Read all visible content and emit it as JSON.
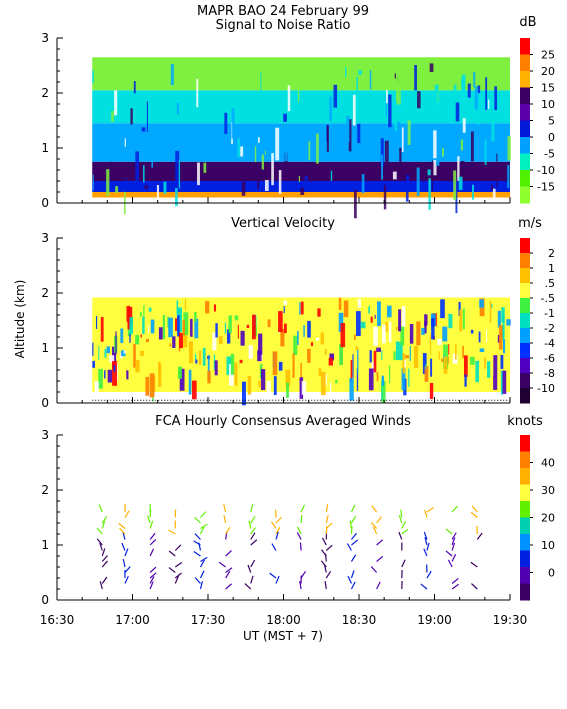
{
  "figure_title": "MAPR BAO 24 February 99",
  "x_axis_label": "UT  (MST + 7)",
  "x_tick_labels": [
    "16:30",
    "17:00",
    "17:30",
    "18:00",
    "18:30",
    "19:00",
    "19:30"
  ],
  "y_axis_label": "Altitude (km)",
  "chart_data": [
    {
      "type": "heatmap",
      "title": "Signal to Noise Ratio",
      "colorbar_unit": "dB",
      "ylim": [
        0,
        3
      ],
      "y_ticks": [
        "0",
        "1",
        "2",
        "3"
      ],
      "data_extent_x": [
        "16:44",
        "19:30"
      ],
      "data_extent_y": [
        0.1,
        2.65
      ],
      "colorbar": {
        "labels": [
          "25",
          "20",
          "15",
          "10",
          "5",
          "0",
          "-5",
          "-10",
          "-15"
        ],
        "colors": [
          "#ff0000",
          "#ff7f00",
          "#ffb000",
          "#3a0063",
          "#5a00a8",
          "#0018d8",
          "#00a0ff",
          "#00f0c0",
          "#50f000",
          "#90ff30"
        ]
      },
      "layers": [
        {
          "from_km": 0.1,
          "to_km": 0.2,
          "color": "#ffa000"
        },
        {
          "from_km": 0.2,
          "to_km": 0.4,
          "color": "#0020e0"
        },
        {
          "from_km": 0.4,
          "to_km": 0.75,
          "color": "#3a0063"
        },
        {
          "from_km": 0.75,
          "to_km": 1.45,
          "color": "#00a8ff"
        },
        {
          "from_km": 1.45,
          "to_km": 2.05,
          "color": "#00e0e0"
        },
        {
          "from_km": 2.05,
          "to_km": 2.65,
          "color": "#80f040"
        }
      ]
    },
    {
      "type": "heatmap",
      "title": "Vertical Velocity",
      "colorbar_unit": "m/s",
      "ylim": [
        0,
        3
      ],
      "y_ticks": [
        "0",
        "1",
        "2",
        "3"
      ],
      "data_extent_x": [
        "16:44",
        "19:30"
      ],
      "data_extent_y": [
        0.2,
        2.1
      ],
      "colorbar": {
        "labels": [
          "2",
          "1",
          ".5",
          "-.5",
          "-1",
          "-2",
          "-4",
          "-6",
          "-8",
          "-10"
        ],
        "colors": [
          "#ff0000",
          "#ff7f00",
          "#ffc000",
          "#ffff40",
          "#40f040",
          "#00e0c0",
          "#00a0ff",
          "#0030ff",
          "#5000c0",
          "#3a0063",
          "#200030"
        ]
      },
      "dominant_color": "#ffff40"
    },
    {
      "type": "barbs",
      "title": "FCA Hourly Consensus Averaged Winds",
      "colorbar_unit": "knots",
      "ylim": [
        0,
        3
      ],
      "y_ticks": [
        "0",
        "1",
        "2",
        "3"
      ],
      "colorbar": {
        "labels": [
          "40",
          "30",
          "20",
          "10",
          "0"
        ],
        "colors": [
          "#ff0000",
          "#ff7f00",
          "#ffb000",
          "#ffff40",
          "#60f000",
          "#00d0b0",
          "#0090ff",
          "#0020e0",
          "#5000b0",
          "#3a0063"
        ]
      },
      "profile_times": [
        "16:48",
        "16:57",
        "17:07",
        "17:17",
        "17:27",
        "17:37",
        "17:47",
        "17:57",
        "18:07",
        "18:17",
        "18:27",
        "18:37",
        "18:47",
        "18:57",
        "19:07",
        "19:17"
      ]
    }
  ]
}
